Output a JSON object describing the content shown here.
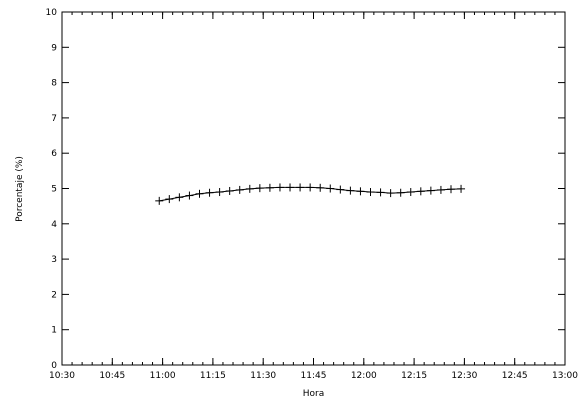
{
  "chart_data": {
    "type": "line",
    "title": "",
    "xlabel": "Hora",
    "ylabel": "Porcentaje (%)",
    "x_unit": "time HH:MM",
    "xlim": [
      "10:30",
      "13:00"
    ],
    "ylim": [
      0,
      10
    ],
    "xticks": [
      "10:30",
      "10:45",
      "11:00",
      "11:15",
      "11:30",
      "11:45",
      "12:00",
      "12:15",
      "12:30",
      "12:45",
      "13:00"
    ],
    "yticks": [
      "0",
      "1",
      "2",
      "3",
      "4",
      "5",
      "6",
      "7",
      "8",
      "9",
      "10"
    ],
    "grid": false,
    "legend": "none",
    "colors": {
      "line": "#000000",
      "axis": "#000000",
      "background": "#ffffff"
    },
    "series": [
      {
        "marker": "plus",
        "x": [
          "10:59",
          "11:02",
          "11:05",
          "11:08",
          "11:11",
          "11:14",
          "11:17",
          "11:20",
          "11:23",
          "11:26",
          "11:29",
          "11:32",
          "11:35",
          "11:38",
          "11:41",
          "11:44",
          "11:47",
          "11:50",
          "11:53",
          "11:56",
          "11:59",
          "12:02",
          "12:05",
          "12:08",
          "12:11",
          "12:14",
          "12:17",
          "12:20",
          "12:23",
          "12:26",
          "12:29"
        ],
        "y": [
          4.65,
          4.7,
          4.75,
          4.8,
          4.85,
          4.88,
          4.9,
          4.93,
          4.96,
          4.99,
          5.01,
          5.02,
          5.03,
          5.03,
          5.03,
          5.03,
          5.02,
          5.0,
          4.97,
          4.94,
          4.92,
          4.9,
          4.89,
          4.87,
          4.88,
          4.9,
          4.92,
          4.94,
          4.96,
          4.98,
          4.99
        ]
      }
    ]
  }
}
